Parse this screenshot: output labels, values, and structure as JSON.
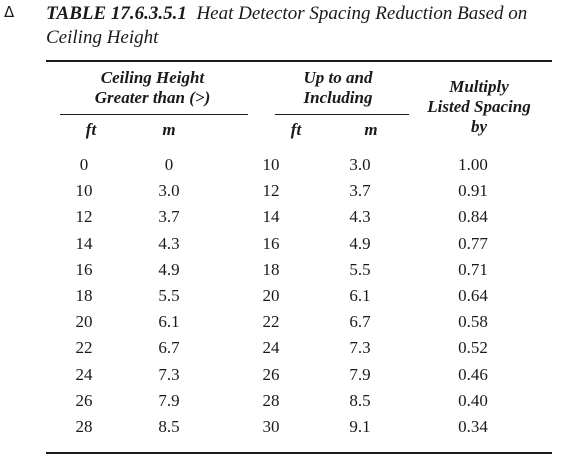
{
  "table": {
    "change_marker": "Δ",
    "number": "TABLE 17.6.3.5.1",
    "title": "Heat Detector Spacing Reduction Based on Ceiling Height",
    "headers": {
      "group1": "Ceiling Height\nGreater than (>)",
      "group2": "Up to and\nIncluding",
      "group3": "Multiply\nListed Spacing\nby",
      "unit_ft_1": "ft",
      "unit_m_1": "m",
      "unit_ft_2": "ft",
      "unit_m_2": "m"
    },
    "rows": [
      [
        "0",
        "0",
        "10",
        "3.0",
        "1.00"
      ],
      [
        "10",
        "3.0",
        "12",
        "3.7",
        "0.91"
      ],
      [
        "12",
        "3.7",
        "14",
        "4.3",
        "0.84"
      ],
      [
        "14",
        "4.3",
        "16",
        "4.9",
        "0.77"
      ],
      [
        "16",
        "4.9",
        "18",
        "5.5",
        "0.71"
      ],
      [
        "18",
        "5.5",
        "20",
        "6.1",
        "0.64"
      ],
      [
        "20",
        "6.1",
        "22",
        "6.7",
        "0.58"
      ],
      [
        "22",
        "6.7",
        "24",
        "7.3",
        "0.52"
      ],
      [
        "24",
        "7.3",
        "26",
        "7.9",
        "0.46"
      ],
      [
        "26",
        "7.9",
        "28",
        "8.5",
        "0.40"
      ],
      [
        "28",
        "8.5",
        "30",
        "9.1",
        "0.34"
      ]
    ]
  }
}
